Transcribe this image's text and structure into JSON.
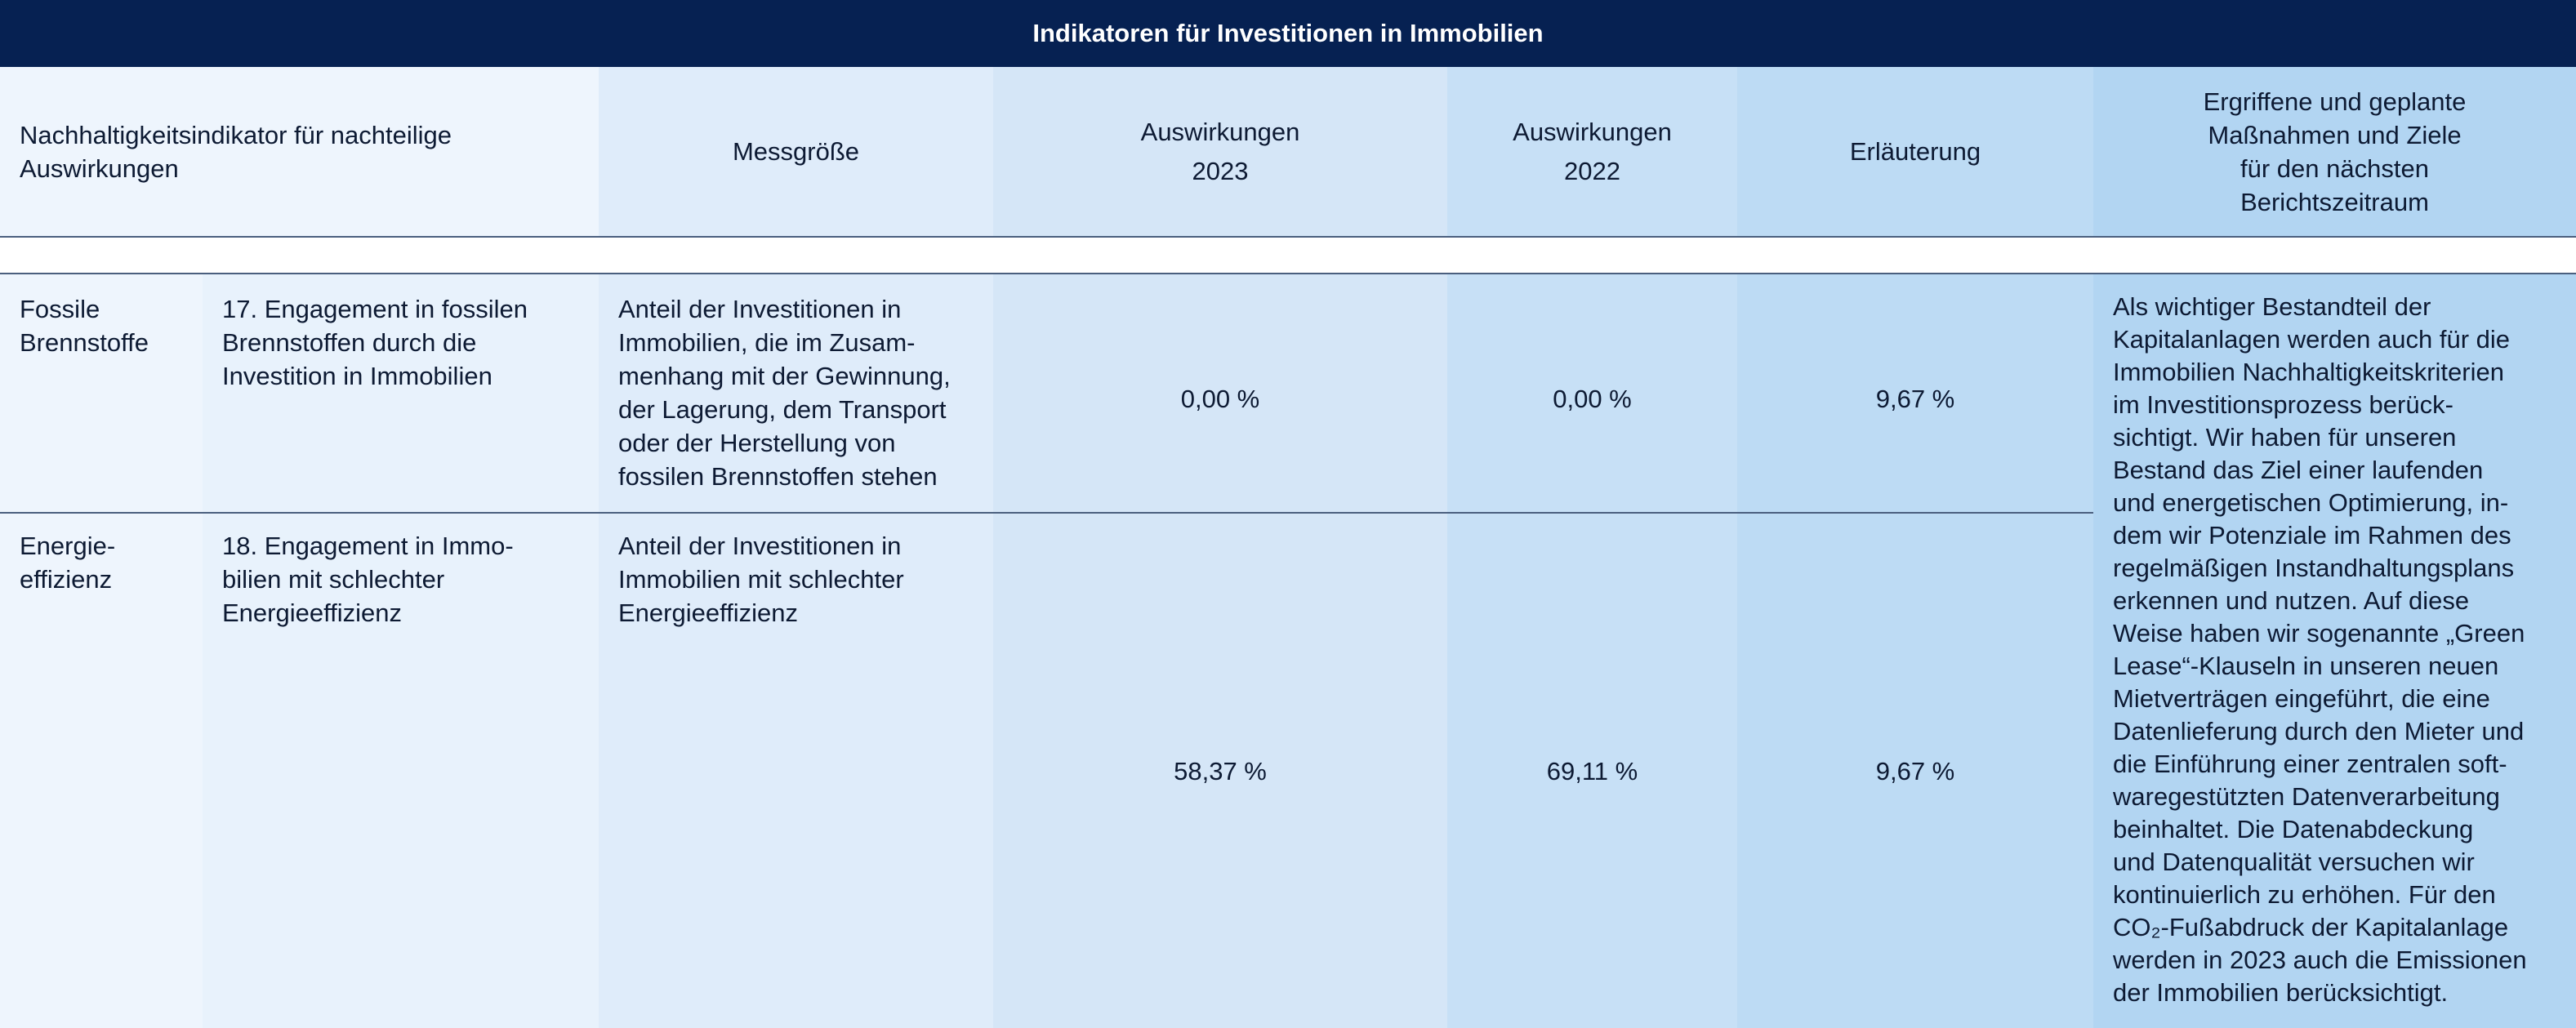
{
  "title": "Indikatoren für Investitionen in Immobilien",
  "header": {
    "indicator": "Nachhaltigkeitsindikator für nachteilige Auswirkungen",
    "metric": "Messgröße",
    "impact_2023": "Auswirkungen\n2023",
    "impact_2022": "Auswirkungen\n2022",
    "explanation": "Erläuterung",
    "actions": "Ergriffene und geplante\nMaßnahmen und Ziele\nfür den nächsten\nBerichtszeitraum"
  },
  "rows": [
    {
      "category": "Fossile\nBrennstoffe",
      "indicator": "17. Engagement in fossilen\nBrennstoffen durch die\nInvestition in Immobilien",
      "metric": "Anteil der Investitionen in\nImmobilien, die im Zusam-\nmenhang mit der Gewinnung,\nder Lagerung, dem Transport\noder der Herstellung von\nfossilen Brennstoffen stehen",
      "impact_2023": "0,00 %",
      "impact_2022": "0,00 %",
      "explanation": "9,67 %"
    },
    {
      "category": "Energie-\neffizienz",
      "indicator": "18. Engagement in Immo-\nbilien mit schlechter\nEnergieeffizienz",
      "metric": "Anteil der Investitionen in\nImmobilien mit schlechter\nEnergieeffizienz",
      "impact_2023": "58,37 %",
      "impact_2022": "69,11 %",
      "explanation": "9,67 %"
    }
  ],
  "actions_text": "Als wichtiger Bestandteil der\nKapitalanlagen werden auch für die\nImmobilien Nachhaltigkeitskriterien\nim Investitionsprozess berück-\nsichtigt. Wir haben für unseren\nBestand das Ziel einer laufenden\nund energetischen Optimierung, in-\ndem wir Potenziale im Rahmen des\nregelmäßigen Instandhaltungsplans\nerkennen und nutzen. Auf diese\nWeise haben wir sogenannte „Green\nLease“-Klauseln in unseren neuen\nMietverträgen eingeführt, die eine\nDatenlieferung durch den Mieter und\ndie Einführung einer zentralen soft-\nwaregestützten Datenverarbeitung\nbeinhaltet. Die Datenabdeckung\nund Datenqualität versuchen wir\nkontinuierlich zu erhöhen. Für den\nCO₂-Fußabdruck der Kapitalanlage\nwerden in 2023 auch die Emissionen\nder Immobilien berücksichtigt.",
  "colors": {
    "title_bar": "#062152",
    "col1": "#eef5fd",
    "col2": "#e8f2fc",
    "col3": "#dfecfa",
    "col4": "#d5e6f7",
    "col5": "#c7e0f6",
    "col6": "#bddbf4",
    "col7": "#b2d5f2"
  }
}
